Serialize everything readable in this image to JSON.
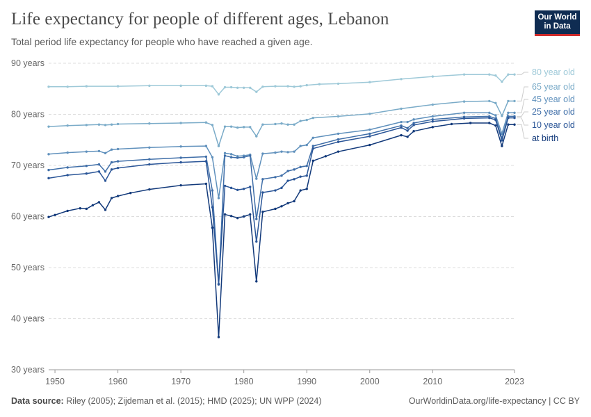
{
  "header": {
    "title": "Life expectancy for people of different ages, Lebanon",
    "subtitle": "Total period life expectancy for people who have reached a given age.",
    "logo_line1": "Our World",
    "logo_line2": "in Data"
  },
  "footer": {
    "source_label": "Data source:",
    "source_text": "Riley (2005); Zijdeman et al. (2015); HMD (2025); UN WPP (2024)",
    "credit": "OurWorldinData.org/life-expectancy | CC BY"
  },
  "chart_data": {
    "type": "line",
    "title": "Life expectancy for people of different ages, Lebanon",
    "xlim": [
      1949,
      2023
    ],
    "ylim": [
      30,
      90
    ],
    "yticks": [
      30,
      40,
      50,
      60,
      70,
      80,
      90
    ],
    "ytick_labels": [
      "30 years",
      "40 years",
      "50 years",
      "60 years",
      "70 years",
      "80 years",
      "90 years"
    ],
    "xticks": [
      1950,
      1960,
      1970,
      1980,
      1990,
      2000,
      2010,
      2023
    ],
    "grid": "horizontal dashed",
    "legend": "right, labels at line ends",
    "series": [
      {
        "name": "80 year old",
        "color": "#9ec9d8",
        "values": [
          [
            1949,
            85.4
          ],
          [
            1952,
            85.4
          ],
          [
            1955,
            85.5
          ],
          [
            1960,
            85.5
          ],
          [
            1965,
            85.6
          ],
          [
            1970,
            85.6
          ],
          [
            1974,
            85.6
          ],
          [
            1975,
            85.5
          ],
          [
            1976,
            83.9
          ],
          [
            1977,
            85.3
          ],
          [
            1978,
            85.3
          ],
          [
            1979,
            85.2
          ],
          [
            1980,
            85.2
          ],
          [
            1981,
            85.2
          ],
          [
            1982,
            84.4
          ],
          [
            1983,
            85.4
          ],
          [
            1985,
            85.5
          ],
          [
            1987,
            85.5
          ],
          [
            1988,
            85.4
          ],
          [
            1989,
            85.5
          ],
          [
            1990,
            85.7
          ],
          [
            1992,
            85.9
          ],
          [
            1995,
            86.0
          ],
          [
            2000,
            86.3
          ],
          [
            2005,
            86.9
          ],
          [
            2010,
            87.4
          ],
          [
            2015,
            87.8
          ],
          [
            2019,
            87.8
          ],
          [
            2020,
            87.6
          ],
          [
            2021,
            86.4
          ],
          [
            2022,
            87.8
          ],
          [
            2023,
            87.8
          ]
        ]
      },
      {
        "name": "65 year old",
        "color": "#7aabc8",
        "values": [
          [
            1949,
            77.6
          ],
          [
            1952,
            77.8
          ],
          [
            1955,
            77.9
          ],
          [
            1957,
            78.0
          ],
          [
            1958,
            77.9
          ],
          [
            1959,
            78.0
          ],
          [
            1960,
            78.1
          ],
          [
            1965,
            78.2
          ],
          [
            1970,
            78.3
          ],
          [
            1974,
            78.4
          ],
          [
            1975,
            77.9
          ],
          [
            1976,
            73.8
          ],
          [
            1977,
            77.6
          ],
          [
            1978,
            77.6
          ],
          [
            1979,
            77.4
          ],
          [
            1980,
            77.5
          ],
          [
            1981,
            77.5
          ],
          [
            1982,
            75.7
          ],
          [
            1983,
            78.0
          ],
          [
            1985,
            78.1
          ],
          [
            1986,
            78.2
          ],
          [
            1987,
            78.0
          ],
          [
            1988,
            78.0
          ],
          [
            1989,
            78.7
          ],
          [
            1990,
            78.9
          ],
          [
            1991,
            79.3
          ],
          [
            1995,
            79.6
          ],
          [
            2000,
            80.1
          ],
          [
            2005,
            81.1
          ],
          [
            2010,
            81.9
          ],
          [
            2015,
            82.5
          ],
          [
            2019,
            82.6
          ],
          [
            2020,
            82.2
          ],
          [
            2021,
            79.7
          ],
          [
            2022,
            82.6
          ],
          [
            2023,
            82.6
          ]
        ]
      },
      {
        "name": "45 year old",
        "color": "#5f90bc",
        "values": [
          [
            1949,
            72.2
          ],
          [
            1952,
            72.5
          ],
          [
            1955,
            72.7
          ],
          [
            1957,
            72.8
          ],
          [
            1958,
            72.4
          ],
          [
            1959,
            73.1
          ],
          [
            1960,
            73.2
          ],
          [
            1965,
            73.5
          ],
          [
            1970,
            73.7
          ],
          [
            1974,
            73.8
          ],
          [
            1975,
            71.6
          ],
          [
            1976,
            63.6
          ],
          [
            1977,
            72.4
          ],
          [
            1978,
            72.2
          ],
          [
            1979,
            71.8
          ],
          [
            1980,
            71.9
          ],
          [
            1981,
            72.1
          ],
          [
            1982,
            67.4
          ],
          [
            1983,
            72.3
          ],
          [
            1985,
            72.5
          ],
          [
            1986,
            72.7
          ],
          [
            1987,
            72.6
          ],
          [
            1988,
            72.7
          ],
          [
            1989,
            73.8
          ],
          [
            1990,
            74.0
          ],
          [
            1991,
            75.4
          ],
          [
            1995,
            76.2
          ],
          [
            2000,
            77.0
          ],
          [
            2005,
            78.5
          ],
          [
            2006,
            78.5
          ],
          [
            2007,
            79.0
          ],
          [
            2010,
            79.6
          ],
          [
            2015,
            80.3
          ],
          [
            2019,
            80.3
          ],
          [
            2020,
            79.8
          ],
          [
            2021,
            76.2
          ],
          [
            2022,
            80.3
          ],
          [
            2023,
            80.3
          ]
        ]
      },
      {
        "name": "25 year old",
        "color": "#3f6ea8",
        "values": [
          [
            1949,
            69.1
          ],
          [
            1952,
            69.6
          ],
          [
            1955,
            69.9
          ],
          [
            1957,
            70.2
          ],
          [
            1958,
            68.8
          ],
          [
            1959,
            70.6
          ],
          [
            1960,
            70.8
          ],
          [
            1965,
            71.2
          ],
          [
            1970,
            71.5
          ],
          [
            1974,
            71.7
          ],
          [
            1975,
            65.1
          ],
          [
            1976,
            46.8
          ],
          [
            1977,
            71.9
          ],
          [
            1978,
            71.6
          ],
          [
            1979,
            71.5
          ],
          [
            1980,
            71.6
          ],
          [
            1981,
            71.9
          ],
          [
            1982,
            59.5
          ],
          [
            1983,
            67.3
          ],
          [
            1985,
            67.7
          ],
          [
            1986,
            68.0
          ],
          [
            1987,
            68.9
          ],
          [
            1988,
            69.2
          ],
          [
            1989,
            69.7
          ],
          [
            1990,
            69.9
          ],
          [
            1991,
            73.8
          ],
          [
            1995,
            75.1
          ],
          [
            2000,
            76.2
          ],
          [
            2005,
            77.8
          ],
          [
            2006,
            77.3
          ],
          [
            2007,
            78.3
          ],
          [
            2010,
            79.0
          ],
          [
            2015,
            79.5
          ],
          [
            2019,
            79.6
          ],
          [
            2020,
            79.2
          ],
          [
            2021,
            75.3
          ],
          [
            2022,
            79.6
          ],
          [
            2023,
            79.6
          ]
        ]
      },
      {
        "name": "10 year old",
        "color": "#2a5597",
        "values": [
          [
            1949,
            67.5
          ],
          [
            1952,
            68.1
          ],
          [
            1955,
            68.4
          ],
          [
            1957,
            68.8
          ],
          [
            1958,
            67.0
          ],
          [
            1959,
            69.2
          ],
          [
            1960,
            69.5
          ],
          [
            1965,
            70.2
          ],
          [
            1970,
            70.6
          ],
          [
            1974,
            70.8
          ],
          [
            1975,
            61.8
          ],
          [
            1976,
            46.7
          ],
          [
            1977,
            66.0
          ],
          [
            1978,
            65.6
          ],
          [
            1979,
            65.2
          ],
          [
            1980,
            65.4
          ],
          [
            1981,
            65.8
          ],
          [
            1982,
            55.1
          ],
          [
            1983,
            64.7
          ],
          [
            1985,
            65.1
          ],
          [
            1986,
            65.6
          ],
          [
            1987,
            67.0
          ],
          [
            1988,
            67.3
          ],
          [
            1989,
            67.8
          ],
          [
            1990,
            68.0
          ],
          [
            1991,
            73.3
          ],
          [
            1995,
            74.6
          ],
          [
            2000,
            75.7
          ],
          [
            2005,
            77.4
          ],
          [
            2006,
            76.8
          ],
          [
            2007,
            77.9
          ],
          [
            2010,
            78.6
          ],
          [
            2015,
            79.2
          ],
          [
            2019,
            79.3
          ],
          [
            2020,
            78.9
          ],
          [
            2021,
            74.9
          ],
          [
            2022,
            79.3
          ],
          [
            2023,
            79.3
          ]
        ]
      },
      {
        "name": "at birth",
        "color": "#12397a",
        "values": [
          [
            1949,
            59.9
          ],
          [
            1950,
            60.3
          ],
          [
            1952,
            61.1
          ],
          [
            1954,
            61.6
          ],
          [
            1955,
            61.5
          ],
          [
            1956,
            62.2
          ],
          [
            1957,
            62.8
          ],
          [
            1958,
            61.3
          ],
          [
            1959,
            63.6
          ],
          [
            1960,
            64.0
          ],
          [
            1962,
            64.6
          ],
          [
            1965,
            65.3
          ],
          [
            1970,
            66.1
          ],
          [
            1974,
            66.4
          ],
          [
            1975,
            57.8
          ],
          [
            1976,
            36.4
          ],
          [
            1977,
            60.4
          ],
          [
            1978,
            60.1
          ],
          [
            1979,
            59.7
          ],
          [
            1980,
            60.0
          ],
          [
            1981,
            60.4
          ],
          [
            1982,
            47.3
          ],
          [
            1983,
            60.9
          ],
          [
            1985,
            61.5
          ],
          [
            1986,
            62.0
          ],
          [
            1987,
            62.6
          ],
          [
            1988,
            63.0
          ],
          [
            1989,
            65.1
          ],
          [
            1990,
            65.4
          ],
          [
            1991,
            70.9
          ],
          [
            1993,
            71.8
          ],
          [
            1995,
            72.7
          ],
          [
            2000,
            74.0
          ],
          [
            2005,
            75.9
          ],
          [
            2006,
            75.6
          ],
          [
            2007,
            76.7
          ],
          [
            2010,
            77.5
          ],
          [
            2013,
            78.1
          ],
          [
            2016,
            78.3
          ],
          [
            2019,
            78.3
          ],
          [
            2020,
            77.8
          ],
          [
            2021,
            73.8
          ],
          [
            2022,
            78.0
          ],
          [
            2023,
            78.0
          ]
        ]
      }
    ]
  }
}
